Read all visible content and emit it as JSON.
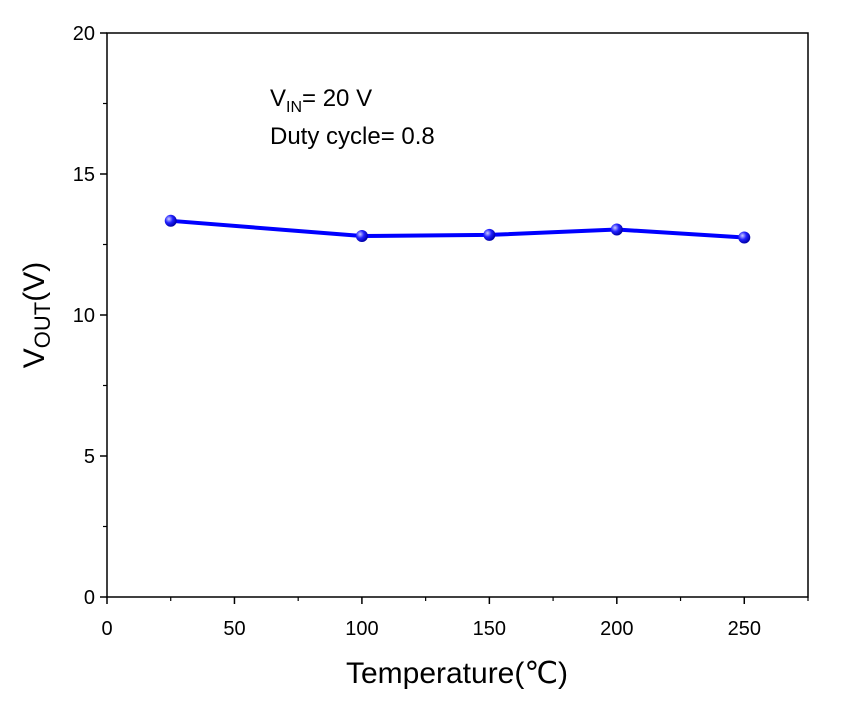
{
  "chart_data": {
    "type": "line",
    "title": "",
    "xlabel": "Temperature(℃)",
    "ylabel_main": "V",
    "ylabel_sub": "OUT",
    "ylabel_tail": "(V)",
    "xlim": [
      0,
      275
    ],
    "ylim": [
      0,
      20
    ],
    "xticks": [
      0,
      50,
      100,
      150,
      200,
      250
    ],
    "yticks": [
      0,
      5,
      10,
      15,
      20
    ],
    "grid": false,
    "series": [
      {
        "name": "VOUT",
        "color": "#0000ff",
        "x": [
          25,
          100,
          150,
          200,
          250
        ],
        "y": [
          13.34,
          12.8,
          12.84,
          13.03,
          12.75
        ]
      }
    ],
    "annotations": {
      "vin_main": "V",
      "vin_sub": "IN",
      "vin_tail": "= 20 V",
      "duty": "Duty cycle= 0.8"
    }
  }
}
